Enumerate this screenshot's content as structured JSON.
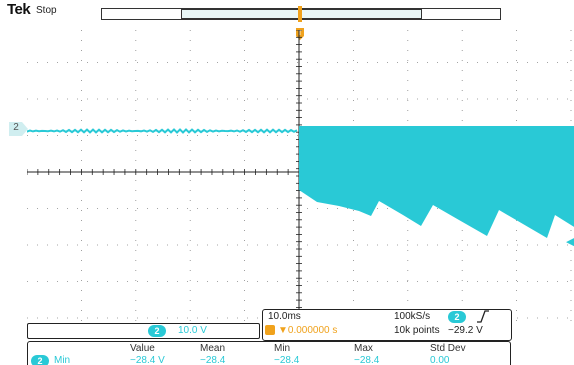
{
  "header": {
    "brand": "Tek",
    "state": "Stop"
  },
  "colors": {
    "channel2": "#29c9d6",
    "trigger": "#f0a21c",
    "grid": "#222222"
  },
  "channel": {
    "marker_label": "2",
    "scale_badge": "2",
    "scale_value": "10.0 V"
  },
  "horizontal": {
    "timebase": "10.0ms",
    "sample_rate": "100kS/s",
    "delay": "▼0.000000 s",
    "record_length": "10k points"
  },
  "trigger": {
    "source_badge": "2",
    "slope_icon": "rising-edge-icon",
    "level": "−29.2 V"
  },
  "measurement": {
    "headers": [
      "Value",
      "Mean",
      "Min",
      "Max",
      "Std Dev"
    ],
    "row": {
      "badge": "2",
      "name": "Min",
      "values": [
        "−28.4 V",
        "−28.4",
        "−28.4",
        "−28.4",
        "0.00"
      ]
    }
  }
}
